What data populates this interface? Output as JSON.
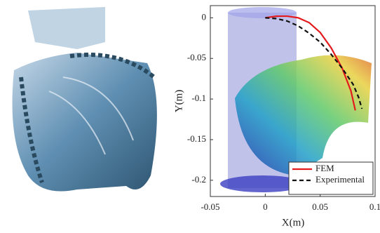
{
  "chart_data": {
    "type": "line",
    "xlabel": "X(m)",
    "ylabel": "Y(m)",
    "xlim": [
      -0.05,
      0.1
    ],
    "xticks": [
      -0.05,
      0,
      0.05,
      0.1
    ],
    "ylim": [
      -0.22,
      0.015
    ],
    "yticks": [
      0,
      -0.05,
      -0.1,
      -0.15,
      -0.2
    ],
    "legend": "southeast",
    "series": [
      {
        "name": "FEM",
        "color": "#e41a1c",
        "dash": false,
        "x": [
          0,
          0.01,
          0.02,
          0.03,
          0.04,
          0.05,
          0.06,
          0.07,
          0.078,
          0.082
        ],
        "values": [
          0,
          0.002,
          0.002,
          0,
          -0.006,
          -0.018,
          -0.037,
          -0.062,
          -0.09,
          -0.114
        ]
      },
      {
        "name": "Experimental",
        "color": "#111111",
        "dash": true,
        "x": [
          0,
          0.01,
          0.02,
          0.03,
          0.04,
          0.05,
          0.06,
          0.07,
          0.08,
          0.085,
          0.088
        ],
        "values": [
          0,
          -0.001,
          -0.004,
          -0.01,
          -0.019,
          -0.03,
          -0.045,
          -0.062,
          -0.082,
          -0.098,
          -0.112
        ]
      }
    ]
  }
}
